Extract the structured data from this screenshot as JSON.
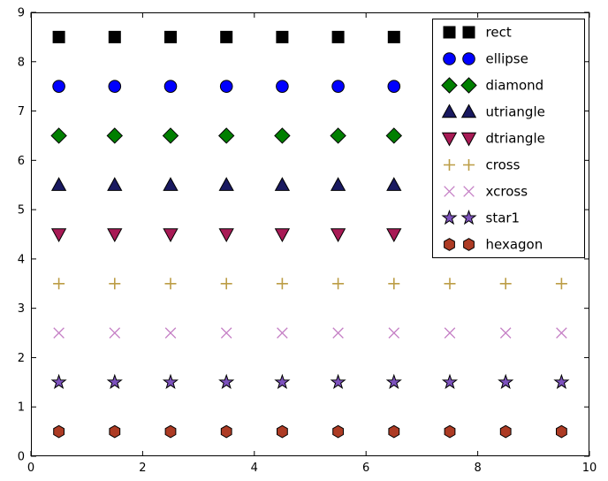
{
  "figure": {
    "background": "#ffffff",
    "frame_color": "#000000"
  },
  "chart_data": {
    "type": "scatter",
    "title": "",
    "xlabel": "",
    "ylabel": "",
    "xlim": [
      0,
      10
    ],
    "ylim": [
      0,
      9
    ],
    "xtick_values": [
      0,
      2,
      4,
      6,
      8,
      10
    ],
    "xtick_labels": [
      "0",
      "2",
      "4",
      "6",
      "8",
      "10"
    ],
    "ytick_values": [
      0,
      1,
      2,
      3,
      4,
      5,
      6,
      7,
      8,
      9
    ],
    "ytick_labels": [
      "0",
      "1",
      "2",
      "3",
      "4",
      "5",
      "6",
      "7",
      "8",
      "9"
    ],
    "grid": false,
    "legend_position": "upper-right",
    "legend_numpoints": 2,
    "x_values": [
      0.5,
      1.5,
      2.5,
      3.5,
      4.5,
      5.5,
      6.5,
      7.5,
      8.5,
      9.5
    ],
    "series": [
      {
        "name": "rect",
        "marker": "square",
        "y": 8.5,
        "fill": "#000000",
        "edge": "#000000"
      },
      {
        "name": "ellipse",
        "marker": "circle",
        "y": 7.5,
        "fill": "#0000ff",
        "edge": "#000000"
      },
      {
        "name": "diamond",
        "marker": "diamond",
        "y": 6.5,
        "fill": "#007f00",
        "edge": "#000000"
      },
      {
        "name": "utriangle",
        "marker": "triangle-up",
        "y": 5.5,
        "fill": "#191960",
        "edge": "#000000"
      },
      {
        "name": "dtriangle",
        "marker": "triangle-down",
        "y": 4.5,
        "fill": "#a81a55",
        "edge": "#000000"
      },
      {
        "name": "cross",
        "marker": "plus",
        "y": 3.5,
        "fill": "none",
        "edge": "#bc9d46"
      },
      {
        "name": "xcross",
        "marker": "x",
        "y": 2.5,
        "fill": "none",
        "edge": "#c57fc5"
      },
      {
        "name": "star1",
        "marker": "star",
        "y": 1.5,
        "fill": "#7d52bd",
        "edge": "#000000"
      },
      {
        "name": "hexagon",
        "marker": "hexagon",
        "y": 0.5,
        "fill": "#ad3b24",
        "edge": "#000000"
      }
    ]
  }
}
